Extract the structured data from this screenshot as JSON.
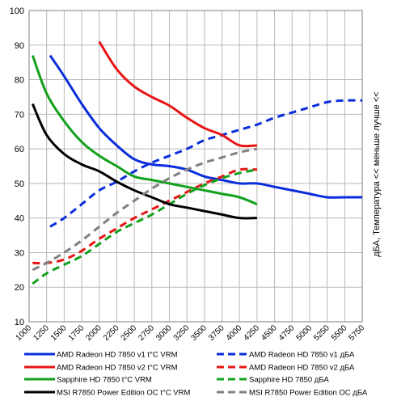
{
  "chart_data": {
    "type": "line",
    "title": "",
    "xlabel": "",
    "ylabel": "дБА, Температура << меньше лучше <<",
    "xlim": [
      1000,
      5750
    ],
    "ylim": [
      10,
      100
    ],
    "x_ticks": [
      "1000",
      "1250",
      "1500",
      "1750",
      "2000",
      "2250",
      "2500",
      "2750",
      "3000",
      "3250",
      "3500",
      "3750",
      "4000",
      "4250",
      "4500",
      "4750",
      "5000",
      "5250",
      "5500",
      "5750"
    ],
    "y_ticks": [
      "10",
      "20",
      "30",
      "40",
      "50",
      "60",
      "70",
      "80",
      "90",
      "100"
    ],
    "grid": true,
    "legend_position": "bottom",
    "series": [
      {
        "name": "AMD Radeon HD 7850 v1 t°C VRM",
        "color": "#0a2ddc",
        "dash": false,
        "x": [
          1300,
          1500,
          1750,
          2000,
          2250,
          2500,
          2750,
          3000,
          3250,
          3500,
          3750,
          4000,
          4250,
          4500,
          4750,
          5000,
          5250,
          5500,
          5750
        ],
        "y": [
          87,
          81,
          73,
          66,
          61,
          57,
          55.5,
          55,
          54,
          52,
          51,
          50,
          50,
          49,
          48,
          47,
          46,
          46,
          46
        ]
      },
      {
        "name": "AMD Radeon HD 7850 v1 дБА",
        "color": "#0a2ddc",
        "dash": true,
        "x": [
          1300,
          1500,
          1750,
          2000,
          2250,
          2500,
          2750,
          3000,
          3250,
          3500,
          3750,
          4000,
          4250,
          4500,
          4750,
          5000,
          5250,
          5500,
          5750
        ],
        "y": [
          37.5,
          40,
          44,
          48,
          50.5,
          53.5,
          56,
          58,
          60,
          62.5,
          64,
          65.5,
          67,
          69,
          70.5,
          72,
          73.5,
          74,
          74
        ]
      },
      {
        "name": "AMD Radeon HD 7850 v2 t°C VRM",
        "color": "#e81414",
        "dash": false,
        "x": [
          2000,
          2250,
          2500,
          2750,
          3000,
          3250,
          3500,
          3750,
          4000,
          4250
        ],
        "y": [
          91,
          83,
          78,
          75,
          72.5,
          69,
          66,
          64,
          61,
          61
        ]
      },
      {
        "name": "AMD Radeon HD 7850 v2 дБА",
        "color": "#e81414",
        "dash": true,
        "x": [
          1050,
          1250,
          1500,
          1750,
          2000,
          2250,
          2500,
          2750,
          3000,
          3250,
          3500,
          3750,
          4000,
          4250
        ],
        "y": [
          27,
          27,
          28,
          30.5,
          34,
          37,
          40,
          42.5,
          45,
          47.5,
          50,
          52,
          54,
          54
        ]
      },
      {
        "name": "Sapphire HD 7850 t°C VRM",
        "color": "#13a01d",
        "dash": false,
        "x": [
          1050,
          1250,
          1500,
          1750,
          2000,
          2250,
          2500,
          2750,
          3000,
          3250,
          3500,
          3750,
          4000,
          4250
        ],
        "y": [
          87,
          76,
          68,
          62,
          58,
          55,
          52,
          51,
          50,
          49,
          48,
          47,
          46,
          44
        ]
      },
      {
        "name": "Sapphire HD 7850 дБА",
        "color": "#13a01d",
        "dash": true,
        "x": [
          1050,
          1250,
          1500,
          1750,
          2000,
          2250,
          2500,
          2750,
          3000,
          3250,
          3500,
          3750,
          4000,
          4250
        ],
        "y": [
          21,
          24,
          26.5,
          29,
          32.5,
          36,
          38.5,
          41,
          44,
          47,
          49.5,
          51.5,
          53,
          54
        ]
      },
      {
        "name": "MSI R7850 Power Edition OC t°C VRM",
        "color": "#000000",
        "dash": false,
        "x": [
          1050,
          1250,
          1500,
          1750,
          2000,
          2250,
          2500,
          2750,
          3000,
          3250,
          3500,
          3750,
          4000,
          4250
        ],
        "y": [
          73,
          64,
          58.5,
          55.5,
          53.5,
          50.5,
          48,
          46,
          44,
          43,
          42,
          41,
          40,
          40
        ]
      },
      {
        "name": "MSI R7850 Power Edition OC дБА",
        "color": "#808080",
        "dash": true,
        "x": [
          1050,
          1250,
          1500,
          1750,
          2000,
          2250,
          2500,
          2750,
          3000,
          3250,
          3500,
          3750,
          4000,
          4250
        ],
        "y": [
          25,
          27,
          30,
          33.5,
          37.5,
          41.5,
          45,
          48.5,
          51.5,
          54,
          56,
          57.5,
          59,
          60
        ]
      }
    ]
  }
}
